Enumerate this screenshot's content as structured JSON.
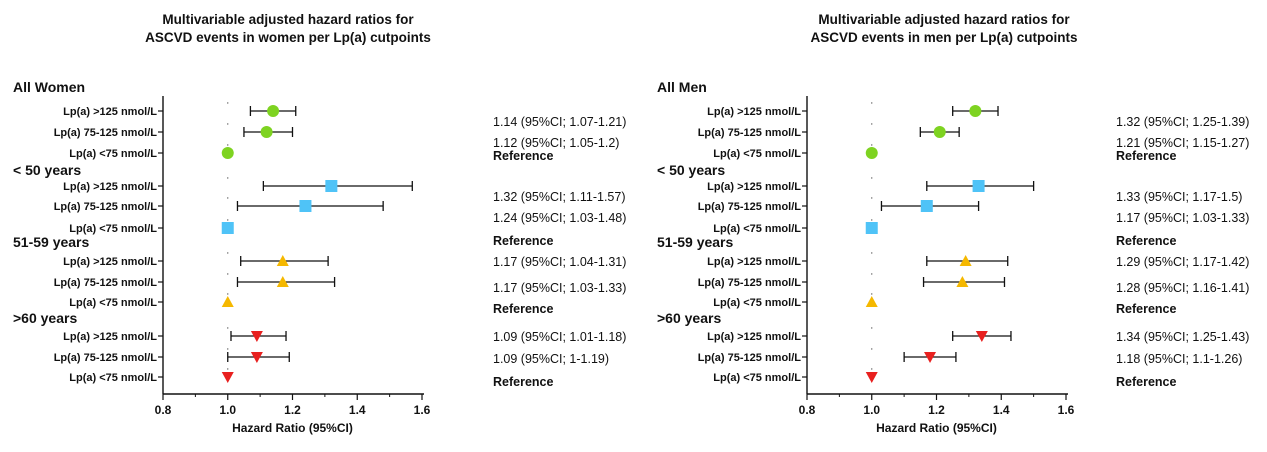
{
  "chart_data": [
    {
      "type": "forest",
      "title": [
        "Multivariable adjusted hazard ratios for",
        "ASCVD events in women per Lp(a) cutpoints"
      ],
      "xlabel": "Hazard Ratio (95%CI)",
      "xlim": [
        0.8,
        1.6
      ],
      "xticks": [
        "0.8",
        "1.0",
        "1.2",
        "1.4",
        "1.6"
      ],
      "reference_line": 1.0,
      "groups": [
        {
          "label": "All Women",
          "marker": "circle",
          "color": "#7ed321",
          "rows": [
            {
              "label": "Lp(a) >125 nmol/L",
              "hr": 1.14,
              "lo": 1.07,
              "hi": 1.21,
              "text": "1.14 (95%CI; 1.07-1.21)"
            },
            {
              "label": "Lp(a) 75-125 nmol/L",
              "hr": 1.12,
              "lo": 1.05,
              "hi": 1.2,
              "text": "1.12 (95%CI; 1.05-1.2)"
            },
            {
              "label": "Lp(a) <75 nmol/L",
              "hr": 1.0,
              "lo": null,
              "hi": null,
              "text": "Reference"
            }
          ]
        },
        {
          "label": "< 50 years",
          "marker": "square",
          "color": "#4fc3f7",
          "rows": [
            {
              "label": "Lp(a) >125 nmol/L",
              "hr": 1.32,
              "lo": 1.11,
              "hi": 1.57,
              "text": "1.32 (95%CI; 1.11-1.57)"
            },
            {
              "label": "Lp(a) 75-125 nmol/L",
              "hr": 1.24,
              "lo": 1.03,
              "hi": 1.48,
              "text": "1.24 (95%CI; 1.03-1.48)"
            },
            {
              "label": "Lp(a) <75 nmol/L",
              "hr": 1.0,
              "lo": null,
              "hi": null,
              "text": "Reference"
            }
          ]
        },
        {
          "label": "51-59 years",
          "marker": "triangle-up",
          "color": "#f5b800",
          "rows": [
            {
              "label": "Lp(a) >125 nmol/L",
              "hr": 1.17,
              "lo": 1.04,
              "hi": 1.31,
              "text": "1.17 (95%CI; 1.04-1.31)"
            },
            {
              "label": "Lp(a) 75-125 nmol/L",
              "hr": 1.17,
              "lo": 1.03,
              "hi": 1.33,
              "text": "1.17 (95%CI; 1.03-1.33)"
            },
            {
              "label": "Lp(a) <75 nmol/L",
              "hr": 1.0,
              "lo": null,
              "hi": null,
              "text": "Reference"
            }
          ]
        },
        {
          "label": ">60 years",
          "marker": "triangle-down",
          "color": "#e8201f",
          "rows": [
            {
              "label": "Lp(a) >125 nmol/L",
              "hr": 1.09,
              "lo": 1.01,
              "hi": 1.18,
              "text": "1.09 (95%CI; 1.01-1.18)"
            },
            {
              "label": "Lp(a) 75-125 nmol/L",
              "hr": 1.09,
              "lo": 1.0,
              "hi": 1.19,
              "text": "1.09 (95%CI; 1-1.19)"
            },
            {
              "label": "Lp(a) <75 nmol/L",
              "hr": 1.0,
              "lo": null,
              "hi": null,
              "text": "Reference"
            }
          ]
        }
      ]
    },
    {
      "type": "forest",
      "title": [
        "Multivariable adjusted hazard ratios for",
        "ASCVD events in men per Lp(a) cutpoints"
      ],
      "xlabel": "Hazard Ratio (95%CI)",
      "xlim": [
        0.8,
        1.6
      ],
      "xticks": [
        "0.8",
        "1.0",
        "1.2",
        "1.4",
        "1.6"
      ],
      "reference_line": 1.0,
      "groups": [
        {
          "label": "All Men",
          "marker": "circle",
          "color": "#7ed321",
          "rows": [
            {
              "label": "Lp(a) >125 nmol/L",
              "hr": 1.32,
              "lo": 1.25,
              "hi": 1.39,
              "text": "1.32 (95%CI; 1.25-1.39)"
            },
            {
              "label": "Lp(a) 75-125 nmol/L",
              "hr": 1.21,
              "lo": 1.15,
              "hi": 1.27,
              "text": "1.21 (95%CI; 1.15-1.27)"
            },
            {
              "label": "Lp(a) <75 nmol/L",
              "hr": 1.0,
              "lo": null,
              "hi": null,
              "text": "Reference"
            }
          ]
        },
        {
          "label": "< 50 years",
          "marker": "square",
          "color": "#4fc3f7",
          "rows": [
            {
              "label": "Lp(a) >125 nmol/L",
              "hr": 1.33,
              "lo": 1.17,
              "hi": 1.5,
              "text": "1.33 (95%CI; 1.17-1.5)"
            },
            {
              "label": "Lp(a) 75-125 nmol/L",
              "hr": 1.17,
              "lo": 1.03,
              "hi": 1.33,
              "text": "1.17 (95%CI; 1.03-1.33)"
            },
            {
              "label": "Lp(a) <75 nmol/L",
              "hr": 1.0,
              "lo": null,
              "hi": null,
              "text": "Reference"
            }
          ]
        },
        {
          "label": "51-59 years",
          "marker": "triangle-up",
          "color": "#f5b800",
          "rows": [
            {
              "label": "Lp(a) >125 nmol/L",
              "hr": 1.29,
              "lo": 1.17,
              "hi": 1.42,
              "text": "1.29 (95%CI; 1.17-1.42)"
            },
            {
              "label": "Lp(a) 75-125 nmol/L",
              "hr": 1.28,
              "lo": 1.16,
              "hi": 1.41,
              "text": "1.28 (95%CI; 1.16-1.41)"
            },
            {
              "label": "Lp(a) <75 nmol/L",
              "hr": 1.0,
              "lo": null,
              "hi": null,
              "text": "Reference"
            }
          ]
        },
        {
          "label": ">60 years",
          "marker": "triangle-down",
          "color": "#e8201f",
          "rows": [
            {
              "label": "Lp(a) >125 nmol/L",
              "hr": 1.34,
              "lo": 1.25,
              "hi": 1.43,
              "text": "1.34 (95%CI; 1.25-1.43)"
            },
            {
              "label": "Lp(a) 75-125 nmol/L",
              "hr": 1.18,
              "lo": 1.1,
              "hi": 1.26,
              "text": "1.18 (95%CI; 1.1-1.26)"
            },
            {
              "label": "Lp(a) <75 nmol/L",
              "hr": 1.0,
              "lo": null,
              "hi": null,
              "text": "Reference"
            }
          ]
        }
      ]
    }
  ]
}
